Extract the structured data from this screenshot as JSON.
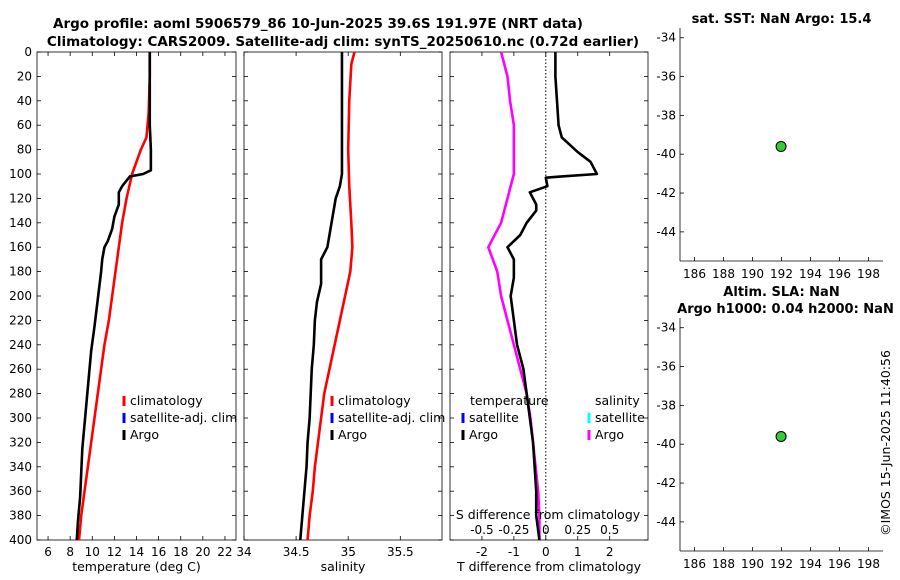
{
  "header": {
    "line1": "Argo profile: aoml 5906579_86 10-Jun-2025 39.6S 191.97E (NRT data)",
    "line2": "Climatology: CARS2009. Satellite-adj clim: synTS_20250610.nc (0.72d earlier)"
  },
  "watermark": "©IMOS 15-Jun-2025 11:40:56",
  "colors": {
    "climatology": "#ff0000",
    "satellite_adj": "#0000ff",
    "argo": "#000000",
    "salinity_satellite": "#00ffff",
    "salinity_diff": "#ff00ff",
    "marker": "#33cc33"
  },
  "chart_data": [
    {
      "id": "temperature",
      "type": "line",
      "xlabel": "temperature (deg C)",
      "ylabel": "",
      "xlim": [
        5,
        23
      ],
      "ylim": [
        400,
        0
      ],
      "xticks": [
        6,
        8,
        10,
        12,
        14,
        16,
        18,
        20,
        22
      ],
      "yticks": [
        0,
        20,
        40,
        60,
        80,
        100,
        120,
        140,
        160,
        180,
        200,
        220,
        240,
        260,
        280,
        300,
        320,
        340,
        360,
        380,
        400
      ],
      "legend": [
        "climatology",
        "satellite-adj. clim",
        "Argo"
      ],
      "series": [
        {
          "name": "climatology",
          "color": "#ff0000",
          "points": [
            [
              15.2,
              0
            ],
            [
              15.2,
              20
            ],
            [
              15.1,
              50
            ],
            [
              14.9,
              70
            ],
            [
              14.4,
              80
            ],
            [
              13.6,
              100
            ],
            [
              13.1,
              120
            ],
            [
              12.7,
              140
            ],
            [
              12.4,
              160
            ],
            [
              12.1,
              180
            ],
            [
              11.8,
              200
            ],
            [
              11.5,
              220
            ],
            [
              11.1,
              240
            ],
            [
              10.8,
              260
            ],
            [
              10.5,
              280
            ],
            [
              10.2,
              300
            ],
            [
              9.9,
              320
            ],
            [
              9.6,
              340
            ],
            [
              9.3,
              360
            ],
            [
              9.0,
              380
            ],
            [
              8.8,
              400
            ]
          ]
        },
        {
          "name": "Argo",
          "color": "#000000",
          "points": [
            [
              15.2,
              0
            ],
            [
              15.2,
              20
            ],
            [
              15.2,
              60
            ],
            [
              15.3,
              80
            ],
            [
              15.3,
              97
            ],
            [
              14.6,
              100
            ],
            [
              13.4,
              102
            ],
            [
              12.7,
              110
            ],
            [
              12.4,
              115
            ],
            [
              12.4,
              125
            ],
            [
              12.0,
              135
            ],
            [
              11.8,
              145
            ],
            [
              11.4,
              155
            ],
            [
              11.1,
              160
            ],
            [
              10.9,
              170
            ],
            [
              10.8,
              180
            ],
            [
              10.6,
              195
            ],
            [
              10.4,
              210
            ],
            [
              10.2,
              225
            ],
            [
              9.9,
              245
            ],
            [
              9.7,
              265
            ],
            [
              9.5,
              285
            ],
            [
              9.3,
              305
            ],
            [
              9.1,
              325
            ],
            [
              9.0,
              345
            ],
            [
              8.9,
              365
            ],
            [
              8.7,
              385
            ],
            [
              8.6,
              400
            ]
          ]
        }
      ]
    },
    {
      "id": "salinity",
      "type": "line",
      "xlabel": "salinity",
      "xlim": [
        34,
        35.9
      ],
      "ylim": [
        400,
        0
      ],
      "xticks": [
        34,
        34.5,
        35,
        35.5
      ],
      "xticklabels": [
        "34",
        "34.5",
        "35",
        "35.5"
      ],
      "legend": [
        "climatology",
        "satellite-adj. clim",
        "Argo"
      ],
      "series": [
        {
          "name": "climatology",
          "color": "#ff0000",
          "points": [
            [
              35.06,
              0
            ],
            [
              35.03,
              10
            ],
            [
              35.01,
              40
            ],
            [
              35.0,
              80
            ],
            [
              35.01,
              110
            ],
            [
              35.03,
              140
            ],
            [
              35.04,
              160
            ],
            [
              35.02,
              180
            ],
            [
              34.97,
              200
            ],
            [
              34.92,
              220
            ],
            [
              34.87,
              240
            ],
            [
              34.82,
              260
            ],
            [
              34.77,
              280
            ],
            [
              34.74,
              300
            ],
            [
              34.71,
              320
            ],
            [
              34.68,
              340
            ],
            [
              34.66,
              360
            ],
            [
              34.63,
              380
            ],
            [
              34.61,
              400
            ]
          ]
        },
        {
          "name": "Argo",
          "color": "#000000",
          "points": [
            [
              34.94,
              0
            ],
            [
              34.94,
              60
            ],
            [
              34.94,
              100
            ],
            [
              34.92,
              110
            ],
            [
              34.88,
              120
            ],
            [
              34.86,
              130
            ],
            [
              34.83,
              145
            ],
            [
              34.8,
              160
            ],
            [
              34.74,
              170
            ],
            [
              34.74,
              190
            ],
            [
              34.7,
              205
            ],
            [
              34.68,
              220
            ],
            [
              34.67,
              240
            ],
            [
              34.65,
              260
            ],
            [
              34.64,
              280
            ],
            [
              34.63,
              300
            ],
            [
              34.61,
              320
            ],
            [
              34.6,
              340
            ],
            [
              34.58,
              360
            ],
            [
              34.56,
              380
            ],
            [
              34.54,
              400
            ]
          ]
        }
      ]
    },
    {
      "id": "difference",
      "type": "line",
      "xlabel": "T difference from climatology",
      "top_label": "S difference from climatology",
      "xlim": [
        -3,
        3.2
      ],
      "ylim": [
        400,
        0
      ],
      "xticks": [
        -2,
        -1,
        0,
        1,
        2
      ],
      "top_xticks": [
        -0.5,
        -0.25,
        0,
        0.25,
        0.5
      ],
      "top_xticklabels": [
        "-0.5",
        "-0.25",
        "0",
        "0.25",
        "0.5"
      ],
      "legend_left_title": "temperature",
      "legend_left": [
        "satellite",
        "Argo"
      ],
      "legend_right_title": "salinity",
      "legend_right": [
        "satellite",
        "Argo"
      ],
      "series": [
        {
          "name": "Argo temperature diff",
          "color": "#000000",
          "points": [
            [
              0.3,
              0
            ],
            [
              0.3,
              20
            ],
            [
              0.35,
              40
            ],
            [
              0.4,
              60
            ],
            [
              0.5,
              70
            ],
            [
              1.0,
              82
            ],
            [
              1.4,
              90
            ],
            [
              1.6,
              100
            ],
            [
              0.5,
              102
            ],
            [
              0.0,
              103
            ],
            [
              0.05,
              110
            ],
            [
              -0.5,
              115
            ],
            [
              -0.3,
              125
            ],
            [
              -0.3,
              130
            ],
            [
              -0.6,
              140
            ],
            [
              -0.8,
              150
            ],
            [
              -1.2,
              160
            ],
            [
              -1.0,
              170
            ],
            [
              -1.0,
              185
            ],
            [
              -1.1,
              200
            ],
            [
              -1.0,
              220
            ],
            [
              -0.9,
              240
            ],
            [
              -0.7,
              260
            ],
            [
              -0.6,
              280
            ],
            [
              -0.5,
              300
            ],
            [
              -0.4,
              320
            ],
            [
              -0.35,
              340
            ],
            [
              -0.3,
              360
            ],
            [
              -0.3,
              380
            ],
            [
              -0.2,
              400
            ]
          ]
        },
        {
          "name": "Argo salinity diff",
          "color": "#ff00ff",
          "scale": 4,
          "points": [
            [
              -0.35,
              0
            ],
            [
              -0.3,
              20
            ],
            [
              -0.28,
              40
            ],
            [
              -0.25,
              60
            ],
            [
              -0.25,
              80
            ],
            [
              -0.25,
              100
            ],
            [
              -0.3,
              120
            ],
            [
              -0.35,
              140
            ],
            [
              -0.45,
              160
            ],
            [
              -0.38,
              180
            ],
            [
              -0.35,
              200
            ],
            [
              -0.3,
              220
            ],
            [
              -0.25,
              240
            ],
            [
              -0.2,
              260
            ],
            [
              -0.15,
              280
            ],
            [
              -0.12,
              300
            ],
            [
              -0.1,
              320
            ],
            [
              -0.08,
              340
            ],
            [
              -0.06,
              360
            ],
            [
              -0.05,
              380
            ],
            [
              -0.05,
              400
            ]
          ]
        }
      ]
    },
    {
      "id": "map_sst",
      "type": "scatter",
      "title": "sat. SST: NaN Argo: 15.4",
      "xlim": [
        185,
        199
      ],
      "ylim": [
        -45.5,
        -33.5
      ],
      "xticks": [
        186,
        188,
        190,
        192,
        194,
        196,
        198
      ],
      "yticks": [
        -34,
        -36,
        -38,
        -40,
        -42,
        -44
      ],
      "points": [
        [
          191.97,
          -39.6
        ]
      ]
    },
    {
      "id": "map_sla",
      "type": "scatter",
      "title": "Altim. SLA: NaN",
      "subtitle": "Argo h1000: 0.04 h2000: NaN",
      "xlim": [
        185,
        199
      ],
      "ylim": [
        -45.5,
        -33.5
      ],
      "xticks": [
        186,
        188,
        190,
        192,
        194,
        196,
        198
      ],
      "yticks": [
        -34,
        -36,
        -38,
        -40,
        -42,
        -44
      ],
      "points": [
        [
          191.97,
          -39.6
        ]
      ]
    }
  ]
}
